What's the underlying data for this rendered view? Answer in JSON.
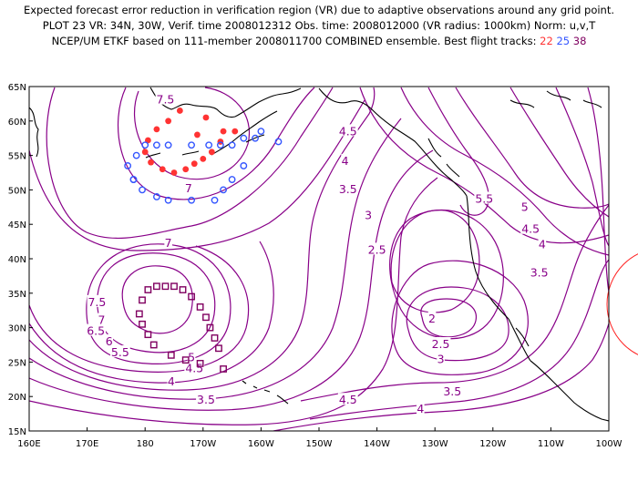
{
  "header": {
    "line1": "Expected forecast error reduction in verification region (VR) due to adaptive observations around any grid point.",
    "line2": "PLOT 23 VR: 34N, 30W, Verif. time 2008012312 Obs. time: 2008012000 (VR radius: 1000km) Norm: u,v,T",
    "line3_prefix": "NCEP/UM ETKF based on 111-member 2008011700 COMBINED ensemble.  Best flight tracks:",
    "track_a": "22",
    "track_b": "25",
    "track_c": "38"
  },
  "axes": {
    "lat_labels": [
      "65N",
      "60N",
      "55N",
      "50N",
      "45N",
      "40N",
      "35N",
      "30N",
      "25N",
      "20N",
      "15N"
    ],
    "lon_labels": [
      "160E",
      "170E",
      "180",
      "170W",
      "160W",
      "150W",
      "140W",
      "130W",
      "120W",
      "110W",
      "100W"
    ]
  },
  "contour_labels": [
    {
      "text": "7.5",
      "lon": -176.5,
      "lat": 63.2
    },
    {
      "text": "4.5",
      "lon": -145,
      "lat": 58.6
    },
    {
      "text": "4",
      "lon": -145.5,
      "lat": 54.3
    },
    {
      "text": "3.5",
      "lon": -145,
      "lat": 50.2
    },
    {
      "text": "3",
      "lon": -141.5,
      "lat": 46.4
    },
    {
      "text": "2.5",
      "lon": -140,
      "lat": 41.4
    },
    {
      "text": "5.5",
      "lon": -121.5,
      "lat": 48.8
    },
    {
      "text": "5",
      "lon": -114.5,
      "lat": 47.6
    },
    {
      "text": "4.5",
      "lon": -113.5,
      "lat": 44.4
    },
    {
      "text": "4",
      "lon": -111.5,
      "lat": 42.2
    },
    {
      "text": "3.5",
      "lon": -112,
      "lat": 38.1
    },
    {
      "text": "7",
      "lon": -172.5,
      "lat": 50.3
    },
    {
      "text": "7",
      "lon": -176,
      "lat": 42.4
    },
    {
      "text": "7.5",
      "lon": -188.3,
      "lat": 33.8
    },
    {
      "text": "7",
      "lon": -187.5,
      "lat": 31.2
    },
    {
      "text": "6.5",
      "lon": -188.5,
      "lat": 29.6
    },
    {
      "text": "6",
      "lon": -186.2,
      "lat": 28.1
    },
    {
      "text": "5.5",
      "lon": -184.3,
      "lat": 26.5
    },
    {
      "text": "5",
      "lon": -172,
      "lat": 25.8
    },
    {
      "text": "4.5",
      "lon": -171.5,
      "lat": 24.2
    },
    {
      "text": "4",
      "lon": -175.5,
      "lat": 22.3
    },
    {
      "text": "3.5",
      "lon": -169.5,
      "lat": 19.6
    },
    {
      "text": "4.5",
      "lon": -145,
      "lat": 19.6
    },
    {
      "text": "4",
      "lon": -132.5,
      "lat": 18.3
    },
    {
      "text": "2",
      "lon": -130.5,
      "lat": 31.4
    },
    {
      "text": "2.5",
      "lon": -129,
      "lat": 27.7
    },
    {
      "text": "3",
      "lon": -129,
      "lat": 25.5
    },
    {
      "text": "3.5",
      "lon": -127,
      "lat": 20.8
    }
  ],
  "tracks": {
    "track_22": {
      "color": "#ff3333",
      "points": [
        [
          -174,
          61.5
        ],
        [
          -176,
          60
        ],
        [
          -178,
          58.8
        ],
        [
          -179.5,
          57.2
        ],
        [
          -180,
          55.5
        ],
        [
          -179,
          54
        ],
        [
          -177,
          53
        ],
        [
          -175,
          52.5
        ],
        [
          -173,
          53
        ],
        [
          -171.5,
          53.8
        ],
        [
          -170,
          54.5
        ],
        [
          -168.5,
          55.5
        ],
        [
          -167,
          57
        ],
        [
          -166.5,
          58.5
        ],
        [
          -169.5,
          60.5
        ],
        [
          -171,
          58
        ],
        [
          -164.5,
          58.5
        ]
      ]
    },
    "track_25": {
      "color": "#3355ff",
      "points": [
        [
          -182,
          51.5
        ],
        [
          -183,
          53.5
        ],
        [
          -181.5,
          55
        ],
        [
          -180,
          56.5
        ],
        [
          -178,
          56.5
        ],
        [
          -176,
          56.5
        ],
        [
          -172,
          56.5
        ],
        [
          -169,
          56.5
        ],
        [
          -167,
          56.5
        ],
        [
          -165,
          56.5
        ],
        [
          -163,
          57.5
        ],
        [
          -161,
          57.5
        ],
        [
          -160,
          58.5
        ],
        [
          -157,
          57
        ],
        [
          -163,
          53.5
        ],
        [
          -165,
          51.5
        ],
        [
          -166.5,
          50
        ],
        [
          -168,
          48.5
        ],
        [
          -172,
          48.5
        ],
        [
          -176,
          48.5
        ],
        [
          -178,
          49
        ],
        [
          -180.5,
          50
        ],
        [
          -182,
          51.5
        ]
      ]
    },
    "track_38": {
      "color": "#800060",
      "points": [
        [
          -178,
          36
        ],
        [
          -176.5,
          36
        ],
        [
          -175,
          36
        ],
        [
          -173.5,
          35.5
        ],
        [
          -172,
          34.5
        ],
        [
          -170.5,
          33
        ],
        [
          -169.5,
          31.5
        ],
        [
          -168.8,
          30
        ],
        [
          -168,
          28.5
        ],
        [
          -167.3,
          27
        ],
        [
          -170.5,
          24.8
        ],
        [
          -173,
          25.3
        ],
        [
          -175.5,
          26
        ],
        [
          -178.5,
          27.5
        ],
        [
          -179.5,
          29
        ],
        [
          -180.5,
          30.5
        ],
        [
          -181,
          32
        ],
        [
          -180.5,
          34
        ],
        [
          -179.5,
          35.5
        ],
        [
          -166.5,
          24
        ]
      ]
    }
  },
  "colors": {
    "contour": "#880088",
    "coast": "#000000"
  }
}
